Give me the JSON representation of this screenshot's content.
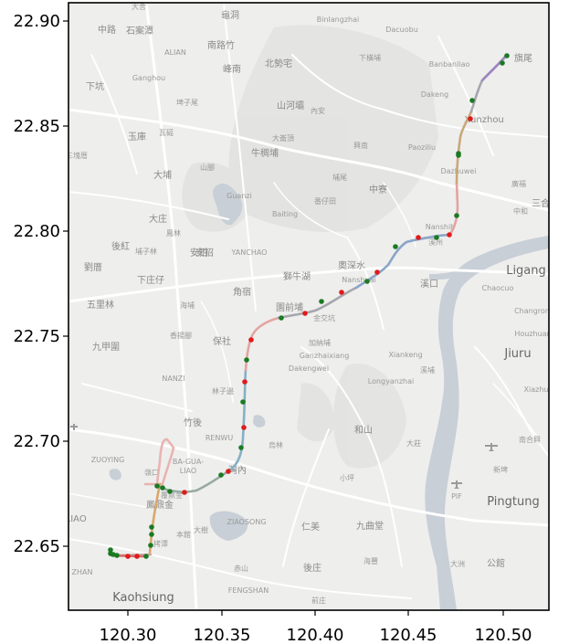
{
  "map": {
    "background": "#eeeeed",
    "water_color": "#c8cfd6",
    "road_color": "#ffffff",
    "x_ticks": [
      "120.30",
      "120.35",
      "120.40",
      "120.45",
      "120.50"
    ],
    "y_ticks": [
      "22.90",
      "22.85",
      "22.80",
      "22.75",
      "22.70",
      "22.65"
    ],
    "place_labels": [
      {
        "text": "大舍"
      },
      {
        "text": "龜洞"
      },
      {
        "text": "Binlangzhai"
      },
      {
        "text": "Dacuobu"
      },
      {
        "text": "旗尾"
      },
      {
        "text": "中路"
      },
      {
        "text": "石案潭"
      },
      {
        "text": "ALIAN"
      },
      {
        "text": "南路竹"
      },
      {
        "text": "下橫埔"
      },
      {
        "text": "Banbanliao"
      },
      {
        "text": "Ganghou"
      },
      {
        "text": "峰南"
      },
      {
        "text": "北勢宅"
      },
      {
        "text": "下坑"
      },
      {
        "text": "埤子尾"
      },
      {
        "text": "山河壩"
      },
      {
        "text": "內安"
      },
      {
        "text": "Dakeng"
      },
      {
        "text": "Xunzhou"
      },
      {
        "text": "玉庫"
      },
      {
        "text": "瓦磘"
      },
      {
        "text": "大崙頂"
      },
      {
        "text": "興南"
      },
      {
        "text": "Paoziliu"
      },
      {
        "text": "三塊厝"
      },
      {
        "text": "牛稠埔"
      },
      {
        "text": "大埔"
      },
      {
        "text": "山腳"
      },
      {
        "text": "Dazhuwei"
      },
      {
        "text": "Guanzi"
      },
      {
        "text": "埔尾"
      },
      {
        "text": "中寮"
      },
      {
        "text": "番仔田"
      },
      {
        "text": "廣福"
      },
      {
        "text": "大庄"
      },
      {
        "text": "Baiting"
      },
      {
        "text": "中和"
      },
      {
        "text": "三合"
      },
      {
        "text": "鳳林"
      },
      {
        "text": "Nanshih"
      },
      {
        "text": "後紅"
      },
      {
        "text": "埔子林"
      },
      {
        "text": "YANCHAO"
      },
      {
        "text": "安招"
      },
      {
        "text": "安招"
      },
      {
        "text": "溪州"
      },
      {
        "text": "奧深水"
      },
      {
        "text": "Nanshuai"
      },
      {
        "text": "Ligang"
      },
      {
        "text": "劉厝"
      },
      {
        "text": "獅牛湖"
      },
      {
        "text": "下庄仔"
      },
      {
        "text": "溪口"
      },
      {
        "text": "Chaocuo"
      },
      {
        "text": "五里林"
      },
      {
        "text": "角宿"
      },
      {
        "text": "海埔"
      },
      {
        "text": "園前埔"
      },
      {
        "text": "金交坑"
      },
      {
        "text": "Changrong"
      },
      {
        "text": "九甲圍"
      },
      {
        "text": "香揚腳"
      },
      {
        "text": "保社"
      },
      {
        "text": "加納埔"
      },
      {
        "text": "Houzhuang"
      },
      {
        "text": "Ganzhaixiang"
      },
      {
        "text": "Jiuru"
      },
      {
        "text": "Xiankeng"
      },
      {
        "text": "NANZI"
      },
      {
        "text": "Dakengwei"
      },
      {
        "text": "溪埔"
      },
      {
        "text": "Longyanzhai"
      },
      {
        "text": "林子邊"
      },
      {
        "text": "Xiazhu"
      },
      {
        "text": "竹後"
      },
      {
        "text": "和山"
      },
      {
        "text": "RENWU"
      },
      {
        "text": "大莊"
      },
      {
        "text": "烏林"
      },
      {
        "text": "南合興"
      },
      {
        "text": "ZUOYING"
      },
      {
        "text": "BA-GUA-"
      },
      {
        "text": "LIAO"
      },
      {
        "text": "灣內"
      },
      {
        "text": "嶺口"
      },
      {
        "text": "小坪"
      },
      {
        "text": "新埤"
      },
      {
        "text": "PIF"
      },
      {
        "text": "Pingtung"
      },
      {
        "text": "鳳鼎金"
      },
      {
        "text": "大樹"
      },
      {
        "text": "仁美"
      },
      {
        "text": "九曲堂"
      },
      {
        "text": "DALIAO"
      },
      {
        "text": "ZIAOSONG"
      },
      {
        "text": "本館"
      },
      {
        "text": "後庄"
      },
      {
        "text": "海豐"
      },
      {
        "text": "大洲"
      },
      {
        "text": "公館"
      },
      {
        "text": "ZHAN"
      },
      {
        "text": "赤山"
      },
      {
        "text": "FENGSHAN"
      },
      {
        "text": "Kaohsiung"
      },
      {
        "text": "前庄"
      },
      {
        "text": "覆鼎金"
      },
      {
        "text": "拷潭"
      }
    ]
  }
}
